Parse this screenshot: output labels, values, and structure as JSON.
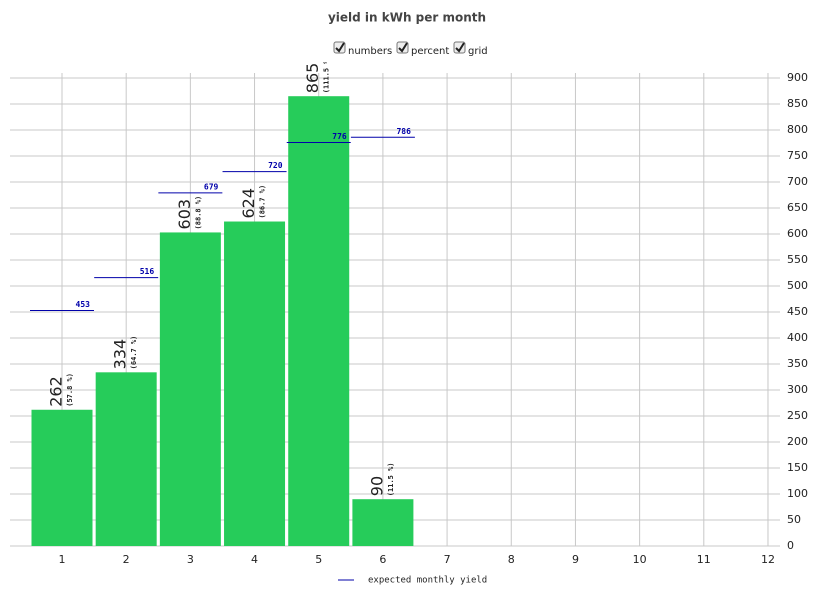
{
  "chart_data": {
    "type": "bar",
    "title": "yield in kWh per month",
    "controls": [
      {
        "label": "numbers",
        "checked": true
      },
      {
        "label": "percent",
        "checked": true
      },
      {
        "label": "grid",
        "checked": true
      }
    ],
    "categories": [
      "1",
      "2",
      "3",
      "4",
      "5",
      "6",
      "7",
      "8",
      "9",
      "10",
      "11",
      "12"
    ],
    "series": [
      {
        "name": "yield",
        "color": "#26cc5a",
        "values": [
          262,
          334,
          603,
          624,
          865,
          90,
          null,
          null,
          null,
          null,
          null,
          null
        ],
        "percent_labels": [
          "(57.8 %)",
          "(64.7 %)",
          "(88.8 %)",
          "(86.7 %)",
          "(111.5 %)",
          "(11.5 %)",
          null,
          null,
          null,
          null,
          null,
          null
        ]
      },
      {
        "name": "expected monthly yield",
        "color": "#0000aa",
        "values": [
          453,
          516,
          679,
          720,
          776,
          786,
          null,
          null,
          null,
          null,
          null,
          null
        ]
      }
    ],
    "ylim": [
      0,
      900
    ],
    "yticks": [
      0,
      50,
      100,
      150,
      200,
      250,
      300,
      350,
      400,
      450,
      500,
      550,
      600,
      650,
      700,
      750,
      800,
      850,
      900
    ],
    "grid": true
  }
}
